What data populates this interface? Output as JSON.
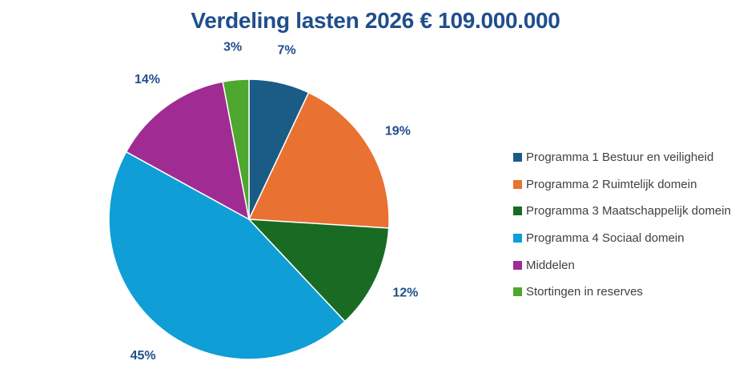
{
  "chart_data": {
    "type": "pie",
    "title": "Verdeling lasten 2026 € 109.000.000",
    "slices": [
      {
        "name": "Programma 1 Bestuur en veiligheid",
        "value": 7,
        "label": "7%",
        "color": "#1a5c86"
      },
      {
        "name": "Programma 2 Ruimtelijk domein",
        "value": 19,
        "label": "19%",
        "color": "#e97132"
      },
      {
        "name": "Programma 3 Maatschappelijk domein",
        "value": 12,
        "label": "12%",
        "color": "#196b24"
      },
      {
        "name": "Programma 4 Sociaal domein",
        "value": 45,
        "label": "45%",
        "color": "#0f9ed5"
      },
      {
        "name": "Middelen",
        "value": 14,
        "label": "14%",
        "color": "#a02b93"
      },
      {
        "name": "Stortingen in reserves",
        "value": 3,
        "label": "3%",
        "color": "#4ea72e"
      }
    ],
    "legend_position": "right",
    "start_angle": "12 o'clock",
    "direction": "clockwise"
  }
}
